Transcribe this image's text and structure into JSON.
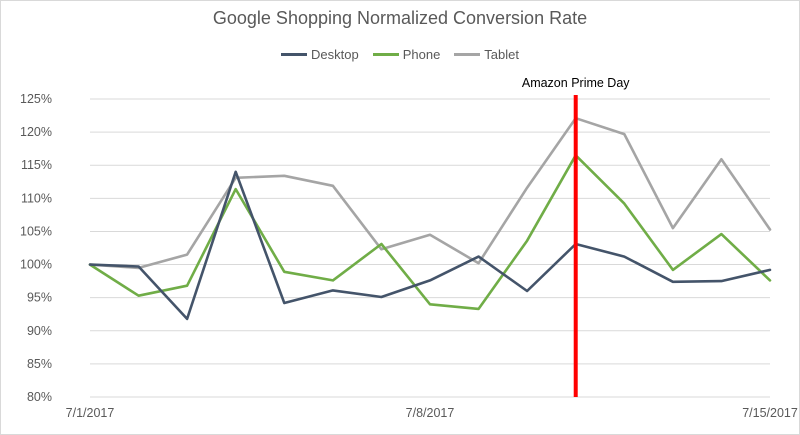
{
  "chart_data": {
    "type": "line",
    "title": "Google Shopping Normalized Conversion Rate",
    "xlabel": "",
    "ylabel": "",
    "x": [
      "7/1/2017",
      "7/2/2017",
      "7/3/2017",
      "7/4/2017",
      "7/5/2017",
      "7/6/2017",
      "7/7/2017",
      "7/8/2017",
      "7/9/2017",
      "7/10/2017",
      "7/11/2017",
      "7/12/2017",
      "7/13/2017",
      "7/14/2017",
      "7/15/2017"
    ],
    "x_tick_labels": [
      "7/1/2017",
      "7/8/2017",
      "7/15/2017"
    ],
    "y_tick_labels": [
      "80%",
      "85%",
      "90%",
      "95%",
      "100%",
      "105%",
      "110%",
      "115%",
      "120%",
      "125%"
    ],
    "ylim": [
      80,
      125
    ],
    "grid": "horizontal",
    "legend_position": "top-center",
    "series": [
      {
        "name": "Desktop",
        "color": "#44546a",
        "values": [
          100,
          99.7,
          91.8,
          114,
          94.2,
          96.1,
          95.1,
          97.6,
          101.2,
          96,
          103.1,
          101.2,
          97.4,
          97.5,
          99.2
        ]
      },
      {
        "name": "Phone",
        "color": "#70ad47",
        "values": [
          100,
          95.3,
          96.8,
          111.4,
          98.9,
          97.6,
          103.1,
          94,
          93.3,
          103.6,
          116.5,
          109.2,
          99.2,
          104.6,
          97.6
        ]
      },
      {
        "name": "Tablet",
        "color": "#a5a5a5",
        "values": [
          100,
          99.5,
          101.5,
          113.1,
          113.4,
          111.9,
          102.3,
          104.5,
          100.2,
          111.6,
          122.1,
          119.7,
          105.5,
          115.9,
          105.3
        ]
      }
    ],
    "annotations": [
      {
        "label": "Amazon Prime Day",
        "x": "7/11/2017",
        "color": "#ff0000"
      }
    ]
  }
}
